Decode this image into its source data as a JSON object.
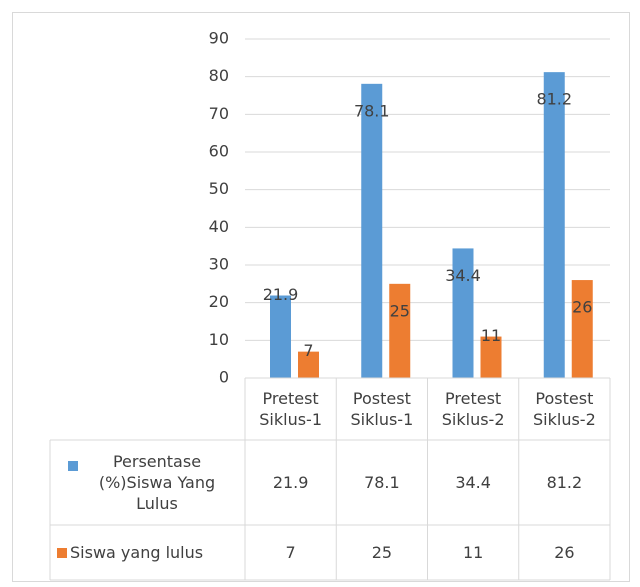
{
  "chart_data": {
    "type": "bar",
    "categories": [
      "Pretest Siklus-1",
      "Postest Siklus-1",
      "Pretest Siklus-2",
      "Postest Siklus-2"
    ],
    "series": [
      {
        "name": "Persentase (%)Siswa Yang Lulus",
        "color": "#5b9bd5",
        "values": [
          21.9,
          78.1,
          34.4,
          81.2
        ]
      },
      {
        "name": "Siswa yang lulus",
        "color": "#ed7d31",
        "values": [
          7,
          25,
          11,
          26
        ]
      }
    ],
    "ylim": [
      0,
      90
    ],
    "yticks": [
      0,
      10,
      20,
      30,
      40,
      50,
      60,
      70,
      80,
      90
    ],
    "grid": true
  }
}
